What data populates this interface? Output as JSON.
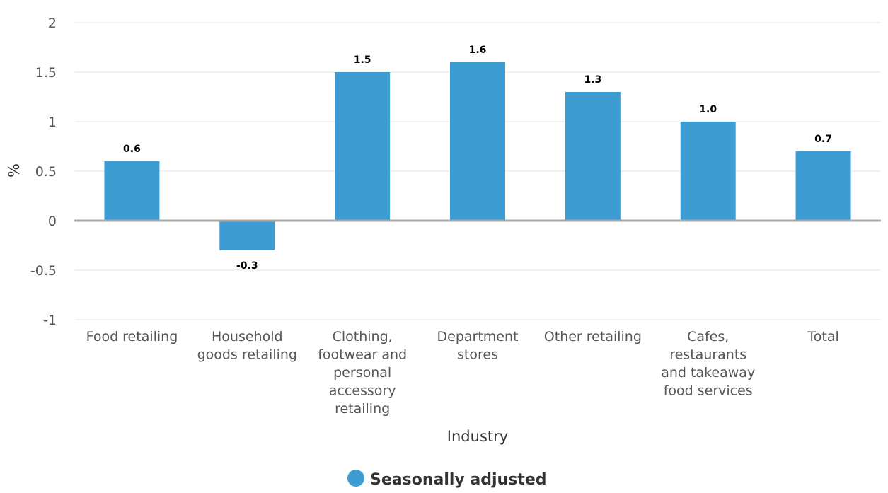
{
  "chart_data": {
    "type": "bar",
    "categories": [
      "Food retailing",
      "Household goods retailing",
      "Clothing, footwear and personal accessory retailing",
      "Department stores",
      "Other retailing",
      "Cafes, restaurants and takeaway food services",
      "Total"
    ],
    "category_lines": [
      [
        "Food retailing"
      ],
      [
        "Household",
        "goods retailing"
      ],
      [
        "Clothing,",
        "footwear and",
        "personal",
        "accessory",
        "retailing"
      ],
      [
        "Department",
        "stores"
      ],
      [
        "Other retailing"
      ],
      [
        "Cafes,",
        "restaurants",
        "and takeaway",
        "food services"
      ],
      [
        "Total"
      ]
    ],
    "series": [
      {
        "name": "Seasonally adjusted",
        "values": [
          0.6,
          -0.3,
          1.5,
          1.6,
          1.3,
          1.0,
          0.7
        ],
        "color": "#3d9dd2"
      }
    ],
    "data_labels": [
      "0.6",
      "-0.3",
      "1.5",
      "1.6",
      "1.3",
      "1.0",
      "0.7"
    ],
    "xlabel": "Industry",
    "ylabel": "%",
    "ylim": [
      -1,
      2
    ],
    "yticks": [
      2,
      1.5,
      1,
      0.5,
      0,
      -0.5,
      -1
    ],
    "ytick_labels": [
      "2",
      "1.5",
      "1",
      "0.5",
      "0",
      "-0.5",
      "-1"
    ],
    "grid": true,
    "legend": "bottom-center"
  }
}
